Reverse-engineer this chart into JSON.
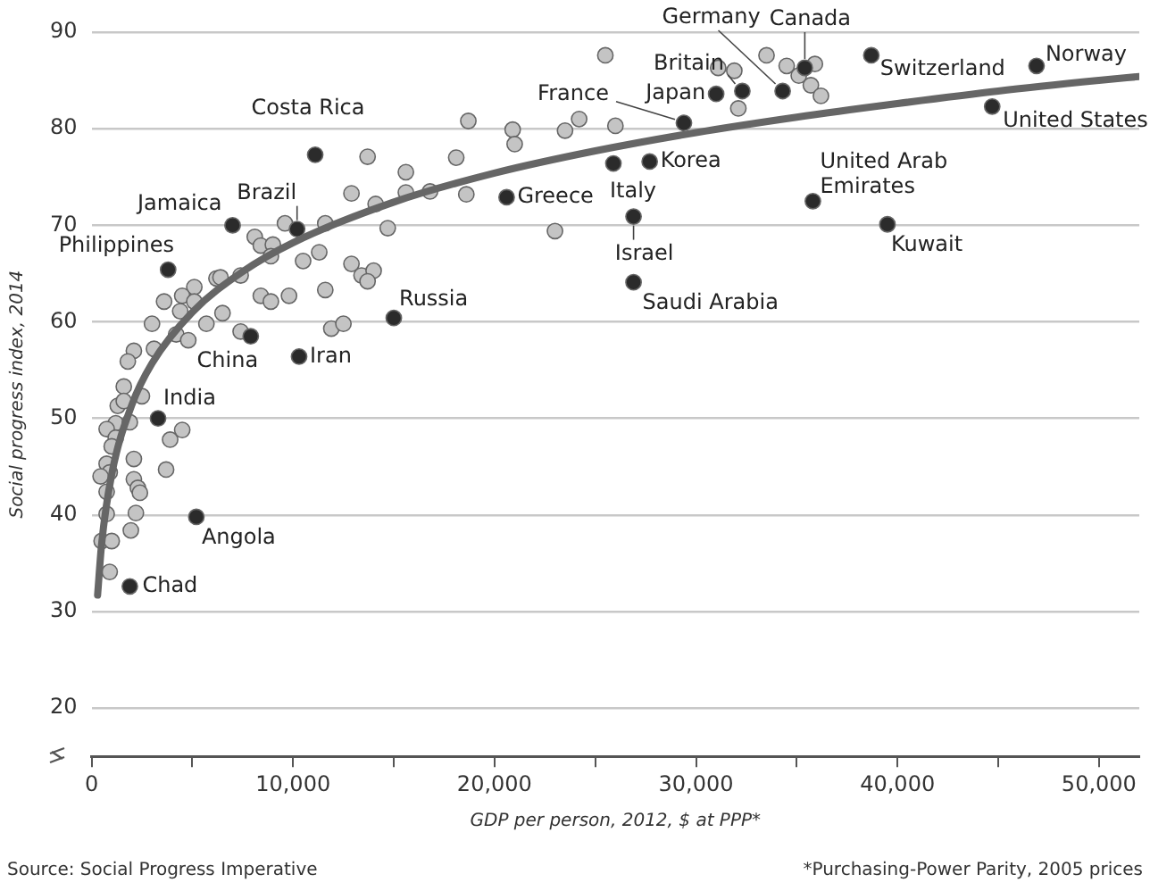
{
  "chart_data": {
    "type": "scatter",
    "xlabel": "GDP per person, 2012, $ at PPP*",
    "ylabel": "Social progress index, 2014",
    "xlim": [
      0,
      52000
    ],
    "ylim": [
      15,
      90
    ],
    "xticks": [
      {
        "value": 0,
        "label": "0"
      },
      {
        "value": 5000,
        "label": null
      },
      {
        "value": 10000,
        "label": "10,000"
      },
      {
        "value": 15000,
        "label": null
      },
      {
        "value": 20000,
        "label": "20,000"
      },
      {
        "value": 25000,
        "label": null
      },
      {
        "value": 30000,
        "label": "30,000"
      },
      {
        "value": 35000,
        "label": null
      },
      {
        "value": 40000,
        "label": "40,000"
      },
      {
        "value": 45000,
        "label": null
      },
      {
        "value": 50000,
        "label": "50,000"
      }
    ],
    "yticks": [
      20,
      30,
      40,
      50,
      60,
      70,
      80,
      90
    ],
    "grid": "y",
    "legend": false,
    "marker": "circle",
    "series": [
      {
        "color": "#c4c4c4",
        "x": [
          12900,
          14100,
          15600,
          15600,
          8100,
          9600,
          11600,
          14700,
          8400,
          9000,
          8900,
          10500,
          11300,
          12900,
          13400,
          14000,
          13700,
          11600,
          9800,
          8400,
          8900,
          6200,
          6400,
          7400,
          5100,
          4500,
          3600,
          5100,
          4400,
          6500,
          3000,
          5700,
          4200,
          4800,
          7400,
          11900,
          12500,
          3100,
          2100,
          1800,
          1600,
          2500,
          1300,
          1600,
          1200,
          1900,
          750,
          1200,
          4500,
          3900,
          1000,
          2100,
          3700,
          750,
          900,
          450,
          2100,
          2300,
          2400,
          750,
          750,
          2200,
          1950,
          500,
          1000,
          900,
          25500,
          18700,
          20900,
          21000,
          23500,
          24200,
          26000,
          13700,
          18100,
          16800,
          18600,
          23000,
          31100,
          31900,
          32100,
          33500,
          34500,
          35100,
          35900,
          35700,
          36200
        ],
        "values": [
          73.3,
          72.2,
          73.4,
          75.5,
          68.8,
          70.2,
          70.2,
          69.7,
          67.9,
          68.0,
          66.8,
          66.3,
          67.2,
          66.0,
          64.8,
          65.3,
          64.2,
          63.3,
          62.7,
          62.7,
          62.1,
          64.5,
          64.6,
          64.8,
          63.6,
          62.7,
          62.1,
          62.1,
          61.1,
          60.9,
          59.8,
          59.8,
          58.7,
          58.1,
          59.0,
          59.3,
          59.8,
          57.2,
          57.0,
          55.9,
          53.3,
          52.3,
          51.3,
          51.8,
          49.5,
          49.6,
          48.9,
          48.0,
          48.8,
          47.8,
          47.1,
          45.8,
          44.7,
          45.3,
          44.4,
          44.0,
          43.7,
          42.8,
          42.3,
          42.4,
          40.1,
          40.2,
          38.4,
          37.3,
          37.3,
          34.1,
          87.6,
          80.8,
          79.9,
          78.4,
          79.8,
          81.0,
          80.3,
          77.1,
          77.0,
          73.5,
          73.2,
          69.4,
          86.3,
          86.0,
          82.1,
          87.6,
          86.5,
          85.5,
          86.7,
          84.5,
          83.4
        ]
      },
      {
        "color": "#2b2b2b",
        "x": [
          1900,
          5200,
          3300,
          7900,
          10300,
          3800,
          7000,
          10200,
          11100,
          15000,
          20600,
          25900,
          27700,
          26900,
          26900,
          29400,
          31000,
          32300,
          34300,
          35400,
          38700,
          46900,
          44700,
          35800,
          39500
        ],
        "values": [
          32.6,
          39.8,
          50.0,
          58.5,
          56.4,
          65.4,
          70.0,
          69.6,
          77.3,
          60.4,
          72.9,
          76.4,
          76.6,
          70.9,
          64.1,
          80.6,
          83.6,
          83.9,
          83.9,
          86.3,
          87.6,
          86.5,
          82.3,
          72.5,
          70.1
        ]
      },
      {
        "type": "line",
        "color": "#666666",
        "marker": "none",
        "x": [
          300,
          500,
          1000,
          2000,
          3000,
          5000,
          7500,
          10000,
          15000,
          20000,
          25000,
          30000,
          35000,
          40000,
          45000,
          50000,
          52000
        ],
        "values": [
          31.7,
          37.0,
          44.2,
          51.4,
          55.7,
          61.0,
          65.2,
          68.2,
          72.4,
          75.4,
          77.7,
          79.6,
          81.2,
          82.6,
          83.9,
          85.0,
          85.4
        ]
      }
    ],
    "annotations": [
      {
        "text": "Chad",
        "x": 1900,
        "y": 32.6
      },
      {
        "text": "Angola",
        "x": 5200,
        "y": 39.8
      },
      {
        "text": "India",
        "x": 3300,
        "y": 50.0
      },
      {
        "text": "China",
        "x": 7900,
        "y": 58.5
      },
      {
        "text": "Iran",
        "x": 10300,
        "y": 56.4
      },
      {
        "text": "Philippines",
        "x": 3800,
        "y": 65.4
      },
      {
        "text": "Jamaica",
        "x": 7000,
        "y": 70.0
      },
      {
        "text": "Brazil",
        "x": 10200,
        "y": 69.6
      },
      {
        "text": "Costa Rica",
        "x": 11100,
        "y": 77.3
      },
      {
        "text": "Russia",
        "x": 15000,
        "y": 60.4
      },
      {
        "text": "Greece",
        "x": 20600,
        "y": 72.9
      },
      {
        "text": "Italy",
        "x": 25900,
        "y": 76.4
      },
      {
        "text": "Korea",
        "x": 27700,
        "y": 76.6
      },
      {
        "text": "Israel",
        "x": 26900,
        "y": 70.9
      },
      {
        "text": "Saudi Arabia",
        "x": 26900,
        "y": 64.1
      },
      {
        "text": "France",
        "x": 29400,
        "y": 80.6
      },
      {
        "text": "Japan",
        "x": 31000,
        "y": 83.6
      },
      {
        "text": "Britain",
        "x": 32300,
        "y": 83.9
      },
      {
        "text": "Germany",
        "x": 34300,
        "y": 83.9
      },
      {
        "text": "Canada",
        "x": 35400,
        "y": 86.3
      },
      {
        "text": "Switzerland",
        "x": 38700,
        "y": 87.6
      },
      {
        "text": "Norway",
        "x": 46900,
        "y": 86.5
      },
      {
        "text": "United States",
        "x": 44700,
        "y": 82.3
      },
      {
        "text": "United Arab Emirates",
        "x": 35800,
        "y": 72.5
      },
      {
        "text": "Kuwait",
        "x": 39500,
        "y": 70.1
      },
      "Source: Social Progress Imperative",
      "*Purchasing-Power Parity, 2005 prices"
    ]
  }
}
